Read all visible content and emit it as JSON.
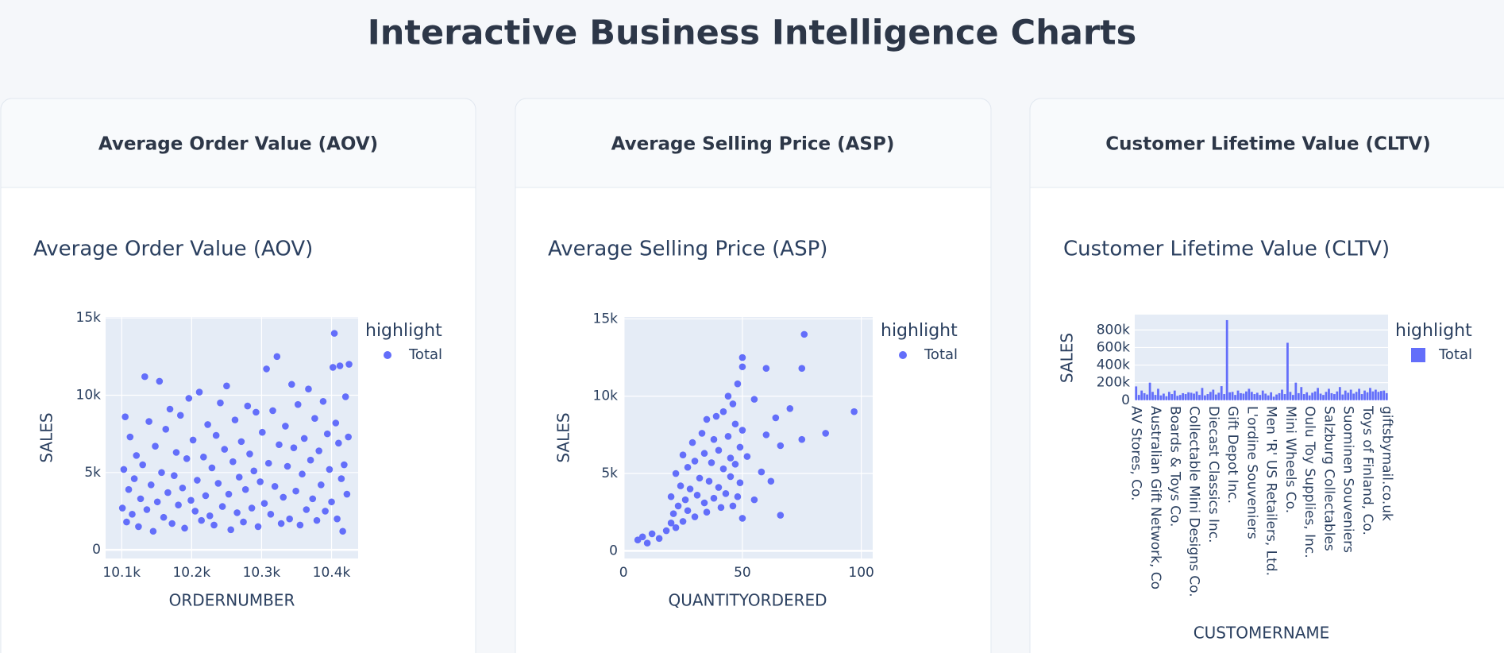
{
  "header": {
    "title": "Interactive Business Intelligence Charts"
  },
  "cards": [
    {
      "title": "Average Order Value (AOV)"
    },
    {
      "title": "Average Selling Price (ASP)"
    },
    {
      "title": "Customer Lifetime Value (CLTV)"
    }
  ],
  "chart_data": [
    {
      "type": "scatter",
      "title": "Average Order Value (AOV)",
      "x_label": "ORDERNUMBER",
      "y_label": "SALES",
      "legend_title": "highlight",
      "grid": true,
      "xlim": [
        10077,
        10438
      ],
      "ylim": [
        -560,
        15060
      ],
      "xticks": [
        {
          "value": 10100,
          "label": "10.1k"
        },
        {
          "value": 10200,
          "label": "10.2k"
        },
        {
          "value": 10300,
          "label": "10.3k"
        },
        {
          "value": 10400,
          "label": "10.4k"
        }
      ],
      "yticks": [
        0,
        {
          "value": 5000,
          "label": "5k"
        },
        {
          "value": 10000,
          "label": "10k"
        },
        {
          "value": 15000,
          "label": "15k"
        }
      ],
      "x": [
        10101,
        10103,
        10105,
        10107,
        10110,
        10112,
        10115,
        10118,
        10121,
        10124,
        10127,
        10130,
        10133,
        10136,
        10139,
        10142,
        10145,
        10148,
        10151,
        10154,
        10157,
        10160,
        10163,
        10166,
        10169,
        10172,
        10175,
        10178,
        10181,
        10184,
        10187,
        10190,
        10193,
        10196,
        10199,
        10202,
        10205,
        10208,
        10211,
        10214,
        10217,
        10220,
        10223,
        10226,
        10229,
        10232,
        10235,
        10238,
        10241,
        10244,
        10247,
        10250,
        10253,
        10256,
        10259,
        10262,
        10265,
        10268,
        10271,
        10274,
        10277,
        10280,
        10283,
        10286,
        10289,
        10292,
        10295,
        10298,
        10301,
        10304,
        10307,
        10310,
        10313,
        10316,
        10319,
        10322,
        10325,
        10328,
        10331,
        10334,
        10337,
        10340,
        10343,
        10346,
        10349,
        10352,
        10355,
        10358,
        10361,
        10364,
        10367,
        10370,
        10373,
        10376,
        10379,
        10382,
        10385,
        10388,
        10391,
        10394,
        10397,
        10400,
        10402,
        10404,
        10406,
        10408,
        10410,
        10412,
        10414,
        10416,
        10418,
        10420,
        10422,
        10424,
        10425
      ],
      "series": [
        {
          "name": "Total",
          "color": "#636efa",
          "values": [
            2700,
            5200,
            8600,
            1800,
            3900,
            7300,
            2300,
            4600,
            6100,
            1500,
            3300,
            5500,
            11200,
            2600,
            8300,
            4200,
            1200,
            6700,
            3100,
            10900,
            5000,
            2100,
            7800,
            3700,
            9100,
            1700,
            4800,
            6300,
            2900,
            8700,
            4000,
            1400,
            5900,
            9800,
            3200,
            7100,
            2500,
            4500,
            10200,
            1900,
            6000,
            3500,
            8100,
            2200,
            5300,
            1600,
            7400,
            4300,
            9500,
            2800,
            6500,
            10600,
            3600,
            1300,
            5700,
            8400,
            2400,
            4700,
            7000,
            1800,
            3900,
            9300,
            6200,
            2700,
            5100,
            8900,
            1500,
            4400,
            7600,
            3000,
            11700,
            5600,
            2300,
            9000,
            4100,
            12500,
            6800,
            1700,
            3400,
            8000,
            5400,
            2000,
            10700,
            6600,
            3800,
            9400,
            1600,
            4900,
            7200,
            2600,
            10400,
            5800,
            3300,
            8500,
            1900,
            6400,
            4200,
            9600,
            2500,
            7500,
            5200,
            3100,
            11800,
            14000,
            8200,
            2000,
            6900,
            11900,
            4600,
            1200,
            5500,
            9900,
            3600,
            7300,
            12000
          ]
        }
      ]
    },
    {
      "type": "scatter",
      "title": "Average Selling Price (ASP)",
      "x_label": "QUANTITYORDERED",
      "y_label": "SALES",
      "legend_title": "highlight",
      "grid": true,
      "xlim": [
        -0.4,
        104.8
      ],
      "ylim": [
        -496,
        15124
      ],
      "xticks": [
        0,
        50,
        100
      ],
      "yticks": [
        0,
        {
          "value": 5000,
          "label": "5k"
        },
        {
          "value": 10000,
          "label": "10k"
        },
        {
          "value": 15000,
          "label": "15k"
        }
      ],
      "x": [
        6,
        8,
        10,
        12,
        15,
        18,
        20,
        20,
        21,
        22,
        22,
        23,
        24,
        25,
        25,
        26,
        27,
        27,
        28,
        29,
        30,
        30,
        31,
        32,
        33,
        34,
        34,
        35,
        35,
        36,
        37,
        38,
        38,
        39,
        40,
        40,
        41,
        42,
        42,
        43,
        44,
        44,
        45,
        45,
        46,
        46,
        47,
        47,
        48,
        48,
        49,
        49,
        50,
        50,
        50,
        50,
        52,
        55,
        55,
        58,
        60,
        60,
        62,
        64,
        66,
        66,
        70,
        75,
        75,
        76,
        85,
        97
      ],
      "series": [
        {
          "name": "Total",
          "color": "#636efa",
          "values": [
            700,
            900,
            500,
            1100,
            800,
            1300,
            1800,
            3500,
            2400,
            1500,
            5000,
            2900,
            4200,
            1900,
            6200,
            3300,
            2600,
            5400,
            4000,
            7000,
            2200,
            5800,
            3600,
            4700,
            7600,
            3100,
            6300,
            2500,
            8500,
            4500,
            5700,
            3400,
            7200,
            8700,
            4100,
            6500,
            2800,
            5300,
            9000,
            3700,
            7400,
            10000,
            4800,
            6000,
            9500,
            2900,
            5600,
            8200,
            3500,
            10800,
            6700,
            4400,
            7800,
            12500,
            11900,
            2100,
            6100,
            9800,
            3300,
            5100,
            11800,
            7500,
            4500,
            8600,
            6800,
            2300,
            9200,
            11800,
            7200,
            14000,
            7600,
            9000
          ]
        }
      ]
    },
    {
      "type": "bar",
      "title": "Customer Lifetime Value (CLTV)",
      "x_label": "CUSTOMERNAME",
      "y_label": "SALES",
      "legend_title": "highlight",
      "grid": true,
      "ylim": [
        -11000,
        975000
      ],
      "yticks": [
        0,
        {
          "value": 200000,
          "label": "200k"
        },
        {
          "value": 400000,
          "label": "400k"
        },
        {
          "value": 600000,
          "label": "600k"
        },
        {
          "value": 800000,
          "label": "800k"
        }
      ],
      "categories": [
        "AV Stores, Co.",
        null,
        null,
        null,
        null,
        null,
        null,
        "Australian Gift Network, Co",
        null,
        null,
        null,
        null,
        null,
        null,
        "Boards & Toys Co.",
        null,
        null,
        null,
        null,
        null,
        null,
        "Collectable Mini Designs Co.",
        null,
        null,
        null,
        null,
        null,
        null,
        "Diecast Classics Inc.",
        null,
        null,
        null,
        null,
        null,
        null,
        "Gift Depot Inc.",
        null,
        null,
        null,
        null,
        null,
        null,
        "L'ordine Souveniers",
        null,
        null,
        null,
        null,
        null,
        null,
        "Men 'R' US Retailers, Ltd.",
        null,
        null,
        null,
        null,
        null,
        null,
        "Mini Wheels Co.",
        null,
        null,
        null,
        null,
        null,
        null,
        "Oulu Toy Supplies, Inc.",
        null,
        null,
        null,
        null,
        null,
        null,
        "Salzburg Collectables",
        null,
        null,
        null,
        null,
        null,
        null,
        "Suominen Souveniers",
        null,
        null,
        null,
        null,
        null,
        null,
        "Toys of Finland, Co.",
        null,
        null,
        null,
        null,
        null,
        null,
        "giftsbymail.co.uk"
      ],
      "series": [
        {
          "name": "Total",
          "color": "#636efa",
          "values": [
            157000,
            60000,
            110000,
            80000,
            65000,
            200000,
            95000,
            60000,
            130000,
            55000,
            75000,
            45000,
            95000,
            70000,
            110000,
            50000,
            60000,
            80000,
            70000,
            90000,
            85000,
            75000,
            100000,
            60000,
            140000,
            55000,
            70000,
            95000,
            120000,
            65000,
            85000,
            160000,
            70000,
            912000,
            90000,
            95000,
            60000,
            110000,
            80000,
            75000,
            100000,
            130000,
            95000,
            70000,
            85000,
            60000,
            110000,
            75000,
            55000,
            90000,
            40000,
            65000,
            80000,
            120000,
            70000,
            654000,
            95000,
            60000,
            200000,
            80000,
            150000,
            70000,
            90000,
            55000,
            85000,
            100000,
            140000,
            75000,
            60000,
            95000,
            130000,
            80000,
            70000,
            100000,
            150000,
            65000,
            110000,
            85000,
            120000,
            75000,
            95000,
            130000,
            70000,
            110000,
            90000,
            140000,
            100000,
            120000,
            95000,
            105000,
            110000,
            80000
          ]
        }
      ]
    }
  ]
}
